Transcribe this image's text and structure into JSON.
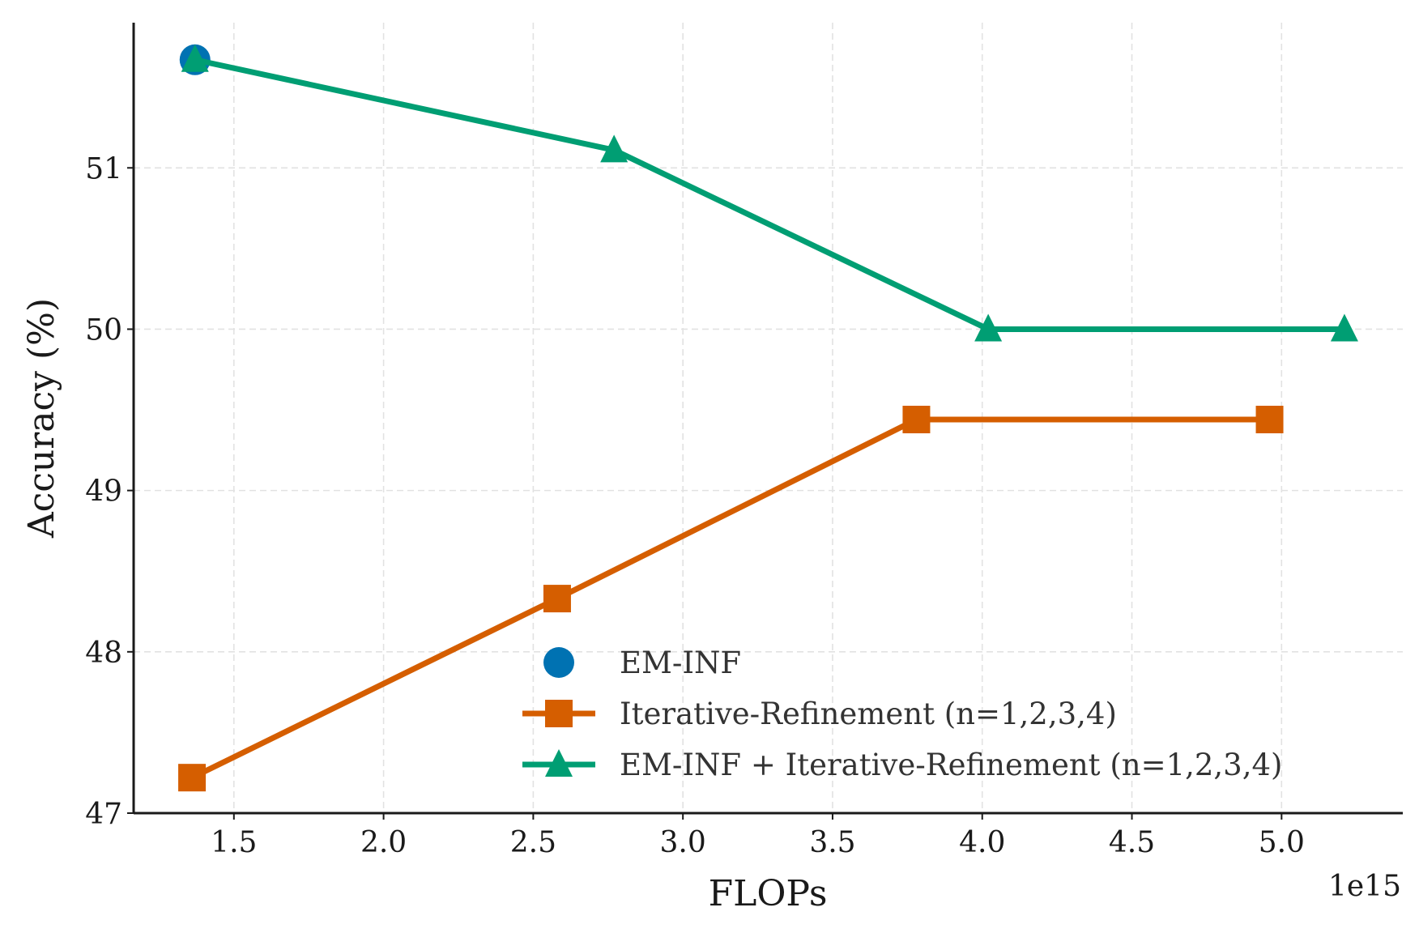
{
  "chart_data": {
    "type": "line",
    "title": "",
    "xlabel": "FLOPs",
    "ylabel": "Accuracy (%)",
    "x_offset_label": "1e15",
    "xlim": [
      1.165,
      5.405
    ],
    "ylim": [
      47.0,
      51.9
    ],
    "xticks": [
      1.5,
      2.0,
      2.5,
      3.0,
      3.5,
      4.0,
      4.5,
      5.0
    ],
    "xtick_labels": [
      "1.5",
      "2.0",
      "2.5",
      "3.0",
      "3.5",
      "4.0",
      "4.5",
      "5.0"
    ],
    "yticks": [
      47,
      48,
      49,
      50,
      51
    ],
    "ytick_labels": [
      "47",
      "48",
      "49",
      "50",
      "51"
    ],
    "grid": true,
    "legend_position": "lower-right",
    "series": [
      {
        "name": "EM-INF",
        "kind": "scatter",
        "marker": "circle",
        "color": "#0072b2",
        "x": [
          1.37
        ],
        "y": [
          51.67
        ]
      },
      {
        "name": "Iterative-Refinement (n=1,2,3,4)",
        "kind": "line",
        "marker": "square",
        "color": "#d55e00",
        "x": [
          1.36,
          2.58,
          3.78,
          4.96
        ],
        "y": [
          47.22,
          48.33,
          49.44,
          49.44
        ]
      },
      {
        "name": "EM-INF + Iterative-Refinement (n=1,2,3,4)",
        "kind": "line",
        "marker": "triangle",
        "color": "#009e73",
        "x": [
          1.37,
          2.77,
          4.02,
          5.21
        ],
        "y": [
          51.67,
          51.11,
          50.0,
          50.0
        ]
      }
    ]
  }
}
